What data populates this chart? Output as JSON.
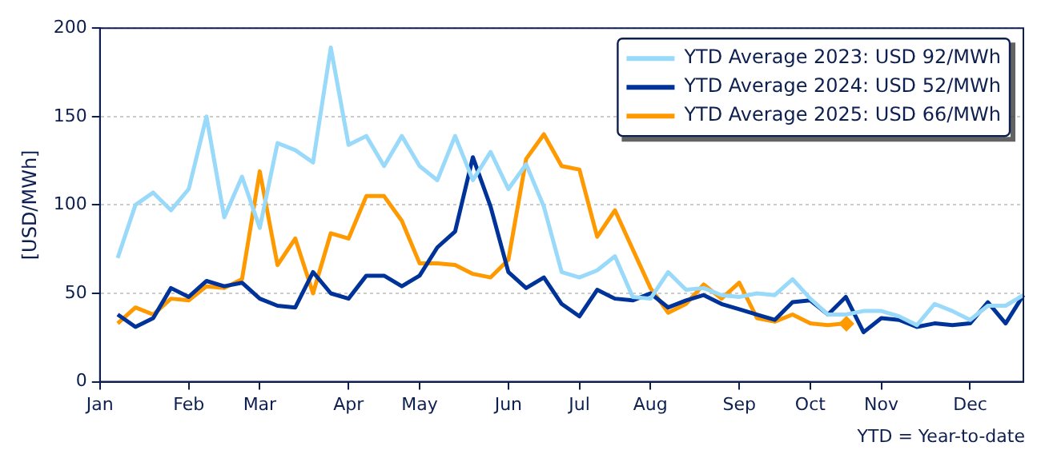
{
  "chart_data": {
    "type": "line",
    "ylabel": "[USD/MWh]",
    "annotations": [
      "YTD = Year-to-date"
    ],
    "categories": [
      "Jan",
      null,
      null,
      null,
      null,
      "Feb",
      null,
      null,
      null,
      "Mar",
      null,
      null,
      null,
      null,
      "Apr",
      null,
      null,
      null,
      "May",
      null,
      null,
      null,
      null,
      "Jun",
      null,
      null,
      null,
      "Jul",
      null,
      null,
      null,
      "Aug",
      null,
      null,
      null,
      null,
      "Sep",
      null,
      null,
      null,
      "Oct",
      null,
      null,
      null,
      "Nov",
      null,
      null,
      null,
      null,
      "Dec",
      null,
      null,
      null
    ],
    "ylim": [
      0,
      200
    ],
    "yticks": [
      0,
      50,
      100,
      150,
      200
    ],
    "grid": "y",
    "legend": "top right",
    "series": [
      {
        "name": "YTD Average 2023: USD 92/MWh",
        "color": "#99d9f9",
        "values": [
          null,
          70,
          100,
          107,
          97,
          109,
          150,
          93,
          116,
          87,
          135,
          131,
          124,
          189,
          134,
          139,
          122,
          139,
          122,
          114,
          139,
          114,
          130,
          109,
          123,
          99,
          62,
          59,
          63,
          71,
          48,
          47,
          62,
          52,
          53,
          49,
          48,
          50,
          49,
          58,
          47,
          38,
          38,
          40,
          40,
          37,
          32,
          44,
          40,
          35,
          43,
          43,
          49
        ]
      },
      {
        "name": "YTD Average 2024: USD 52/MWh",
        "color": "#003399",
        "values": [
          null,
          38,
          31,
          36,
          53,
          48,
          57,
          54,
          56,
          47,
          43,
          42,
          62,
          50,
          47,
          60,
          60,
          54,
          60,
          76,
          85,
          127,
          99,
          62,
          53,
          59,
          44,
          37,
          52,
          47,
          46,
          50,
          42,
          46,
          49,
          44,
          41,
          38,
          35,
          45,
          46,
          38,
          48,
          28,
          36,
          35,
          31,
          33,
          32,
          33,
          45,
          33,
          49
        ]
      },
      {
        "name": "YTD Average 2025: USD 66/MWh",
        "color": "#ff9900",
        "values": [
          null,
          33,
          42,
          38,
          47,
          46,
          54,
          53,
          58,
          119,
          66,
          81,
          50,
          84,
          81,
          105,
          105,
          91,
          67,
          67,
          66,
          61,
          59,
          69,
          126,
          140,
          122,
          120,
          82,
          97,
          75,
          53,
          39,
          44,
          55,
          47,
          56,
          36,
          34,
          38,
          33,
          32,
          33,
          null,
          null,
          null,
          null,
          null,
          null,
          null,
          null,
          null,
          null
        ]
      }
    ]
  }
}
